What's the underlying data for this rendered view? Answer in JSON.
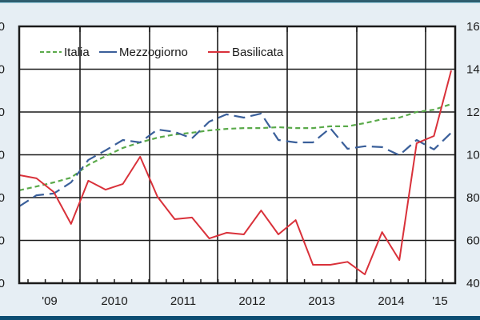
{
  "chart_data": {
    "type": "line",
    "title": "",
    "xlabel": "",
    "ylabel": "",
    "x_tick_labels": [
      "'09",
      "2010",
      "2011",
      "2012",
      "2013",
      "2014",
      "'15"
    ],
    "left_axis_tick_labels_visible": [
      "0",
      "0",
      "0",
      "0",
      "0",
      "0",
      "0"
    ],
    "right_axis_tick_labels": [
      "160",
      "140",
      "120",
      "100",
      "80",
      "60",
      "40"
    ],
    "right_ylim": [
      40,
      160
    ],
    "grid": true,
    "legend_position": "top-left inside",
    "x": [
      "2009Q2",
      "2009Q3",
      "2009Q4",
      "2010Q1",
      "2010Q2",
      "2010Q3",
      "2010Q4",
      "2011Q1",
      "2011Q2",
      "2011Q3",
      "2011Q4",
      "2012Q1",
      "2012Q2",
      "2012Q3",
      "2012Q4",
      "2013Q1",
      "2013Q2",
      "2013Q3",
      "2013Q4",
      "2014Q1",
      "2014Q2",
      "2014Q3",
      "2014Q4",
      "2015Q1",
      "2015Q2",
      "2015Q3"
    ],
    "series": [
      {
        "name": "Italia",
        "style": "dashed-fine",
        "color": "#5aaa4a",
        "values": [
          83.4,
          85.2,
          87.1,
          89.3,
          95.3,
          99.4,
          103.2,
          105.8,
          108.0,
          109.5,
          110.3,
          111.4,
          112.1,
          112.5,
          112.5,
          112.9,
          112.5,
          112.5,
          113.3,
          113.3,
          114.8,
          116.6,
          117.4,
          120.0,
          121.1,
          123.7
        ]
      },
      {
        "name": "Mezzogiorno",
        "style": "dashed-long",
        "color": "#3a5f9a",
        "values": [
          75.9,
          81.1,
          81.9,
          87.1,
          97.6,
          102.1,
          106.9,
          105.8,
          111.8,
          110.7,
          107.7,
          115.5,
          118.9,
          117.4,
          119.3,
          106.9,
          105.8,
          105.8,
          112.5,
          102.8,
          104.0,
          103.6,
          99.8,
          106.9,
          102.5,
          110.3
        ]
      },
      {
        "name": "Basilicata",
        "style": "solid",
        "color": "#d9313a",
        "values": [
          90.5,
          89.0,
          82.6,
          67.7,
          87.9,
          83.7,
          86.4,
          99.1,
          80.4,
          69.9,
          70.7,
          60.9,
          63.6,
          62.8,
          74.0,
          62.8,
          69.5,
          48.6,
          48.6,
          50.0,
          44.1,
          63.9,
          50.8,
          105.4,
          108.8,
          139.4
        ]
      }
    ]
  },
  "legend": {
    "items": [
      {
        "label": "Italia",
        "color": "#5aaa4a"
      },
      {
        "label": "Mezzogiorno",
        "color": "#3a5f9a"
      },
      {
        "label": "Basilicata",
        "color": "#d9313a"
      }
    ]
  }
}
